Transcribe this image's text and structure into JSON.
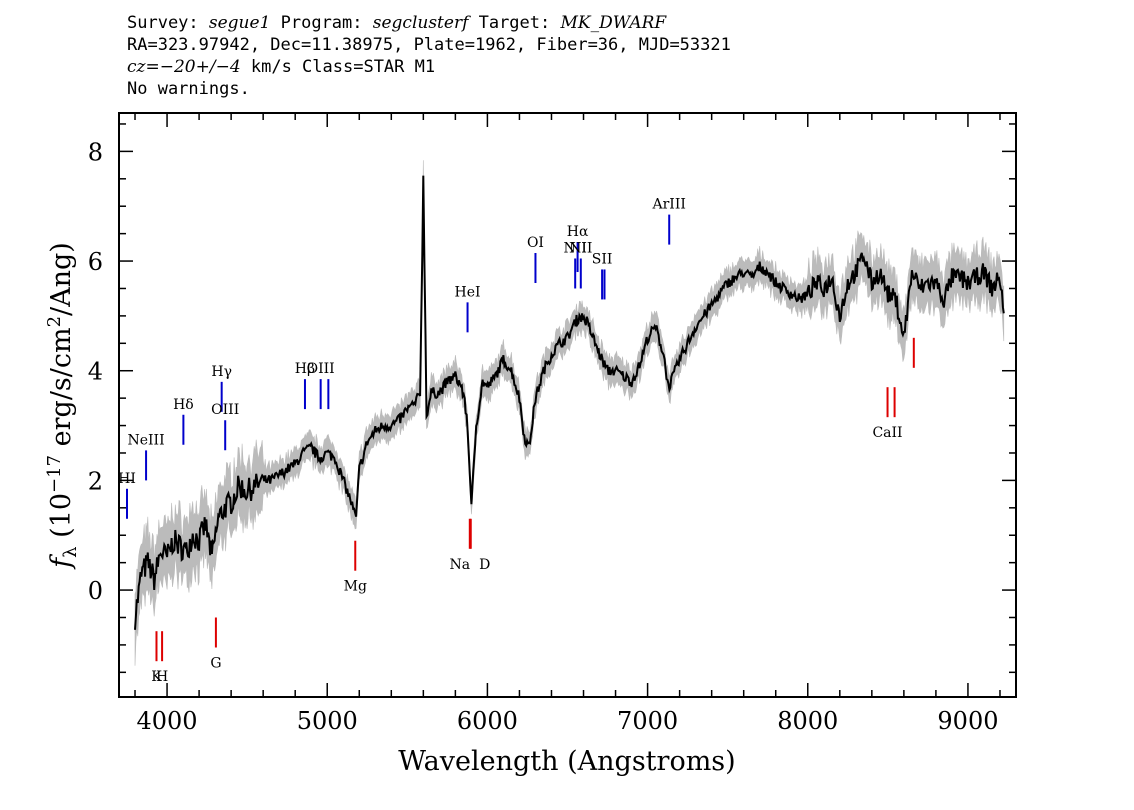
{
  "header": {
    "survey_label": "Survey: ",
    "survey": "segue1",
    "program_label": " Program: ",
    "program": "segclusterf",
    "target_label": " Target: ",
    "target": "MK_DWARF",
    "line2": "RA=323.97942, Dec=11.38975, Plate=1962, Fiber=36, MJD=53321",
    "cz": "cz",
    "cz_value": "=−20+/−4",
    "cz_rest": " km/s Class=STAR M1",
    "line4": "No warnings."
  },
  "chart_data": {
    "type": "line",
    "xlabel": "Wavelength (Angstroms)",
    "ylabel_prefix": "f",
    "ylabel_sub": "λ",
    "ylabel_rest": " (10",
    "ylabel_exp": "−17",
    "ylabel_tail": " erg/s/cm",
    "ylabel_exp2": "2",
    "ylabel_end": "/Ang)",
    "xlim": [
      3700,
      9300
    ],
    "ylim": [
      -1.95,
      8.7
    ],
    "xticks": [
      4000,
      5000,
      6000,
      7000,
      8000,
      9000
    ],
    "xtick_labels": [
      "4000",
      "5000",
      "6000",
      "7000",
      "8000",
      "9000"
    ],
    "yticks": [
      0,
      2,
      4,
      6,
      8
    ],
    "ytick_labels": [
      "0",
      "2",
      "4",
      "6",
      "8"
    ],
    "colors": {
      "flux": "#000000",
      "error": "#bbbbbb",
      "emission": "#0000cc",
      "absorption": "#dd0000"
    },
    "series": [
      {
        "values_kind": "flux",
        "x": [
          3800,
          3840,
          3880,
          3920,
          3960,
          4000,
          4040,
          4080,
          4120,
          4160,
          4200,
          4240,
          4280,
          4320,
          4360,
          4400,
          4450,
          4500,
          4550,
          4600,
          4650,
          4700,
          4750,
          4800,
          4850,
          4900,
          4950,
          5000,
          5050,
          5100,
          5150,
          5180,
          5200,
          5250,
          5300,
          5350,
          5400,
          5450,
          5500,
          5550,
          5580,
          5600,
          5620,
          5650,
          5700,
          5750,
          5800,
          5840,
          5870,
          5890,
          5900,
          5930,
          5970,
          6000,
          6050,
          6100,
          6150,
          6200,
          6230,
          6260,
          6300,
          6350,
          6400,
          6450,
          6500,
          6550,
          6580,
          6620,
          6660,
          6700,
          6750,
          6800,
          6850,
          6900,
          6950,
          7000,
          7050,
          7100,
          7130,
          7160,
          7200,
          7250,
          7300,
          7350,
          7400,
          7450,
          7500,
          7550,
          7600,
          7650,
          7700,
          7750,
          7800,
          7850,
          7900,
          7950,
          8000,
          8050,
          8100,
          8150,
          8200,
          8250,
          8300,
          8350,
          8400,
          8450,
          8500,
          8550,
          8600,
          8650,
          8700,
          8750,
          8800,
          8850,
          8900,
          8950,
          9000,
          9050,
          9100,
          9150,
          9200,
          9230
        ],
        "values": [
          -0.5,
          0.3,
          0.5,
          0.2,
          0.7,
          0.6,
          0.9,
          0.8,
          0.7,
          1.0,
          0.9,
          1.2,
          0.6,
          1.3,
          1.5,
          1.6,
          1.9,
          1.8,
          1.9,
          2.0,
          2.0,
          2.1,
          2.2,
          2.3,
          2.5,
          2.6,
          2.4,
          2.5,
          2.4,
          2.0,
          1.6,
          1.3,
          2.2,
          2.7,
          2.9,
          3.0,
          3.0,
          3.1,
          3.3,
          3.4,
          3.6,
          7.5,
          3.2,
          3.6,
          3.6,
          3.8,
          3.9,
          3.7,
          3.2,
          2.2,
          1.5,
          3.0,
          3.8,
          3.7,
          3.9,
          4.2,
          4.0,
          3.5,
          2.8,
          2.6,
          3.5,
          4.0,
          4.3,
          4.5,
          4.6,
          4.9,
          5.0,
          4.9,
          4.6,
          4.3,
          4.0,
          4.0,
          3.9,
          3.8,
          4.1,
          4.6,
          4.8,
          4.3,
          3.7,
          3.9,
          4.2,
          4.5,
          4.8,
          5.0,
          5.2,
          5.4,
          5.6,
          5.7,
          5.8,
          5.7,
          5.9,
          5.8,
          5.6,
          5.5,
          5.4,
          5.3,
          5.4,
          5.6,
          5.5,
          5.7,
          5.0,
          5.6,
          5.8,
          6.1,
          5.6,
          5.8,
          5.4,
          5.3,
          4.6,
          5.8,
          5.5,
          5.6,
          5.6,
          5.3,
          5.7,
          5.7,
          5.6,
          5.7,
          5.8,
          5.5,
          5.7,
          4.9
        ]
      }
    ],
    "annotations": {
      "emission": [
        {
          "label": "HI",
          "wave": 3750,
          "y": 1.3
        },
        {
          "label": "NeIII",
          "wave": 3869,
          "y": 2.0
        },
        {
          "label": "Hδ",
          "wave": 4102,
          "y": 2.65
        },
        {
          "label": "Hγ",
          "wave": 4341,
          "y": 3.25
        },
        {
          "label": "OIII",
          "wave": 4363,
          "y": 2.55
        },
        {
          "label": "Hβ",
          "wave": 4861,
          "y": 3.3
        },
        {
          "label": "OIII",
          "wave": 4959,
          "y": 3.3
        },
        {
          "label": "",
          "wave": 5007,
          "y": 3.3
        },
        {
          "label": "HeI",
          "wave": 5876,
          "y": 4.7
        },
        {
          "label": "OI",
          "wave": 6300,
          "y": 5.6
        },
        {
          "label": "NII",
          "wave": 6548,
          "y": 5.5
        },
        {
          "label": "Hα",
          "wave": 6563,
          "y": 5.8
        },
        {
          "label": "NII",
          "wave": 6583,
          "y": 5.5
        },
        {
          "label": "SII",
          "wave": 6716,
          "y": 5.3
        },
        {
          "label": "",
          "wave": 6731,
          "y": 5.3
        },
        {
          "label": "ArIII",
          "wave": 7135,
          "y": 6.3
        }
      ],
      "absorption": [
        {
          "label": "K",
          "wave": 3934,
          "y": -0.75
        },
        {
          "label": "H",
          "wave": 3969,
          "y": -0.75
        },
        {
          "label": "G",
          "wave": 4305,
          "y": -0.5
        },
        {
          "label": "Mg",
          "wave": 5175,
          "y": 0.9
        },
        {
          "label": "Na",
          "wave": 5890,
          "y": 1.3
        },
        {
          "label": "D",
          "wave": 5896,
          "y": 1.3
        },
        {
          "label": "CaII",
          "wave": 8498,
          "y": 3.7
        },
        {
          "label": "",
          "wave": 8542,
          "y": 3.7
        },
        {
          "label": "",
          "wave": 8662,
          "y": 4.6
        }
      ]
    }
  }
}
